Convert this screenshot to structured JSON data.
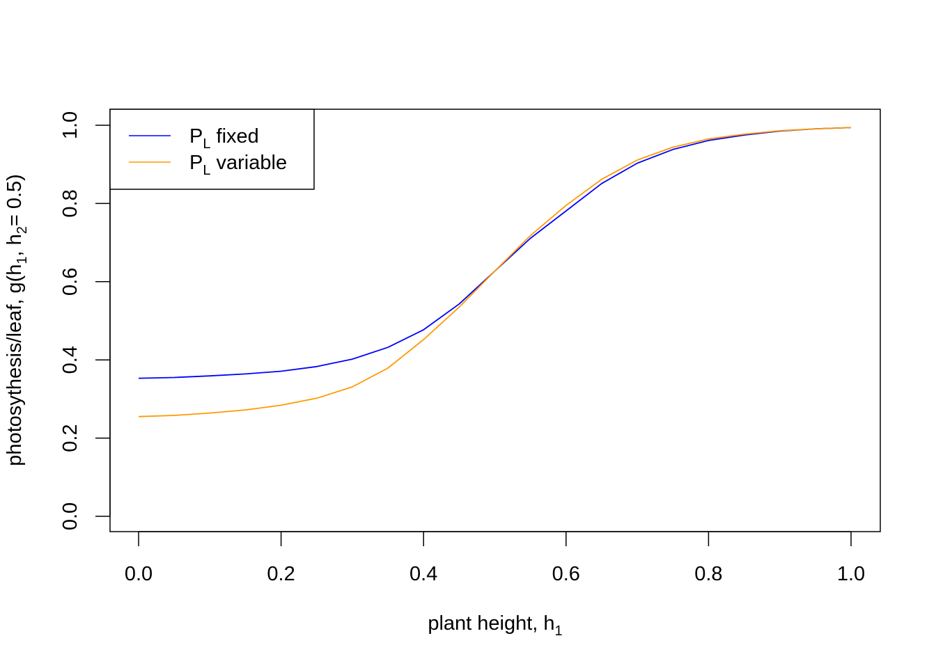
{
  "chart_data": {
    "type": "line",
    "title": "",
    "xlabel": {
      "main": "plant height, h",
      "sub": "1"
    },
    "ylabel": {
      "p1": "photosythesis/leaf, g(h",
      "s1": "1",
      "p2": ", h",
      "s2": "2",
      "p3": "= 0.5)"
    },
    "xlim": [
      0,
      1
    ],
    "ylim": [
      0,
      1
    ],
    "xticks": [
      "0.0",
      "0.2",
      "0.4",
      "0.6",
      "0.8",
      "1.0"
    ],
    "yticks": [
      "0.0",
      "0.2",
      "0.4",
      "0.6",
      "0.8",
      "1.0"
    ],
    "legend_position": "top-left",
    "grid": false,
    "series": [
      {
        "name": {
          "main": "P",
          "sub": "L",
          "rest": " fixed"
        },
        "color": "#0000ff",
        "x": [
          0.0,
          0.05,
          0.1,
          0.15,
          0.2,
          0.25,
          0.3,
          0.35,
          0.4,
          0.45,
          0.5,
          0.55,
          0.6,
          0.65,
          0.7,
          0.75,
          0.8,
          0.85,
          0.9,
          0.95,
          1.0
        ],
        "y": [
          0.353,
          0.355,
          0.359,
          0.364,
          0.371,
          0.383,
          0.402,
          0.432,
          0.477,
          0.543,
          0.627,
          0.711,
          0.781,
          0.851,
          0.903,
          0.938,
          0.961,
          0.975,
          0.985,
          0.991,
          0.994
        ]
      },
      {
        "name": {
          "main": "P",
          "sub": "L",
          "rest": " variable"
        },
        "color": "#ff9900",
        "x": [
          0.0,
          0.05,
          0.1,
          0.15,
          0.2,
          0.25,
          0.3,
          0.35,
          0.4,
          0.45,
          0.5,
          0.55,
          0.6,
          0.65,
          0.7,
          0.75,
          0.8,
          0.85,
          0.9,
          0.95,
          1.0
        ],
        "y": [
          0.255,
          0.258,
          0.264,
          0.272,
          0.284,
          0.302,
          0.331,
          0.379,
          0.452,
          0.535,
          0.627,
          0.718,
          0.795,
          0.862,
          0.911,
          0.944,
          0.965,
          0.977,
          0.986,
          0.991,
          0.994
        ]
      }
    ]
  }
}
